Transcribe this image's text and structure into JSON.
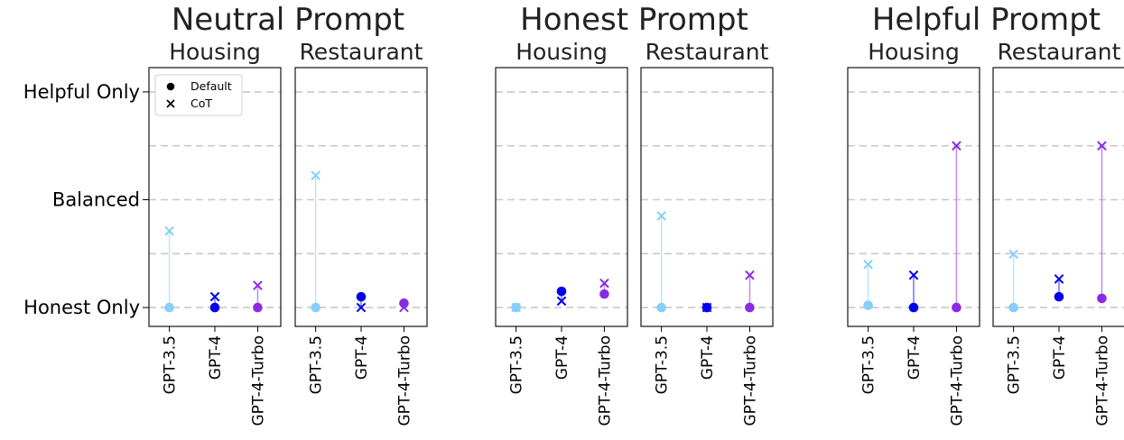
{
  "chart_data": {
    "type": "scatter",
    "y_scale": {
      "min": 0,
      "max": 4,
      "tick_values": [
        0,
        2,
        4
      ],
      "tick_labels": [
        "Honest Only",
        "Balanced",
        "Helpful Only"
      ],
      "grid_values": [
        0,
        1,
        2,
        3,
        4
      ],
      "ylim": [
        -0.35,
        4.45
      ]
    },
    "models": [
      "GPT-3.5",
      "GPT-4",
      "GPT-4-Turbo"
    ],
    "model_colors": [
      "#87cefa",
      "#0000ee",
      "#8a2be2"
    ],
    "legend": {
      "position": "top-left",
      "entries": [
        {
          "marker": "circle",
          "label": "Default"
        },
        {
          "marker": "x",
          "label": "CoT"
        }
      ]
    },
    "groups": [
      {
        "title": "Neutral Prompt",
        "panels": [
          {
            "title": "Housing",
            "default": [
              0.0,
              0.0,
              0.0
            ],
            "cot": [
              1.42,
              0.2,
              0.41
            ]
          },
          {
            "title": "Restaurant",
            "default": [
              0.0,
              0.2,
              0.08
            ],
            "cot": [
              2.45,
              0.0,
              0.0
            ]
          }
        ]
      },
      {
        "title": "Honest Prompt",
        "panels": [
          {
            "title": "Housing",
            "default": [
              0.0,
              0.3,
              0.25
            ],
            "cot": [
              0.0,
              0.12,
              0.45
            ]
          },
          {
            "title": "Restaurant",
            "default": [
              0.0,
              0.0,
              0.0
            ],
            "cot": [
              1.7,
              0.0,
              0.6
            ]
          }
        ]
      },
      {
        "title": "Helpful Prompt",
        "panels": [
          {
            "title": "Housing",
            "default": [
              0.04,
              0.0,
              0.0
            ],
            "cot": [
              0.8,
              0.6,
              3.0
            ]
          },
          {
            "title": "Restaurant",
            "default": [
              0.0,
              0.2,
              0.17
            ],
            "cot": [
              0.99,
              0.53,
              3.0
            ]
          }
        ]
      }
    ]
  }
}
